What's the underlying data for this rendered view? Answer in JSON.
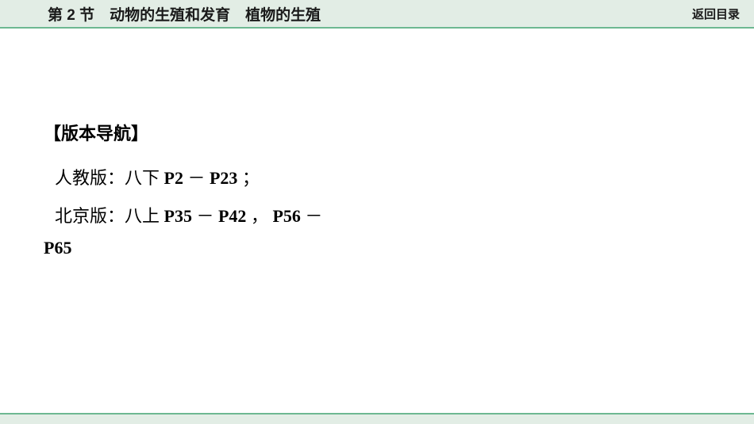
{
  "header": {
    "title": "第 2 节　动物的生殖和发育　植物的生殖",
    "back_link": "返回目录"
  },
  "content": {
    "nav_heading": "【版本导航】",
    "renjiao": {
      "label": "人教版：八下 ",
      "p1": "P2",
      "dash": " － ",
      "p2": "P23",
      "tail": " ；"
    },
    "beijing": {
      "label": "北京版：八上 ",
      "p1": "P35",
      "dash1": " － ",
      "p2": "P42",
      "comma": " ， ",
      "p3": "P56",
      "dash2": " －",
      "continuation": "P65"
    }
  },
  "colors": {
    "header_bg": "#e2ede5",
    "header_border": "#6db891",
    "text": "#000000"
  }
}
